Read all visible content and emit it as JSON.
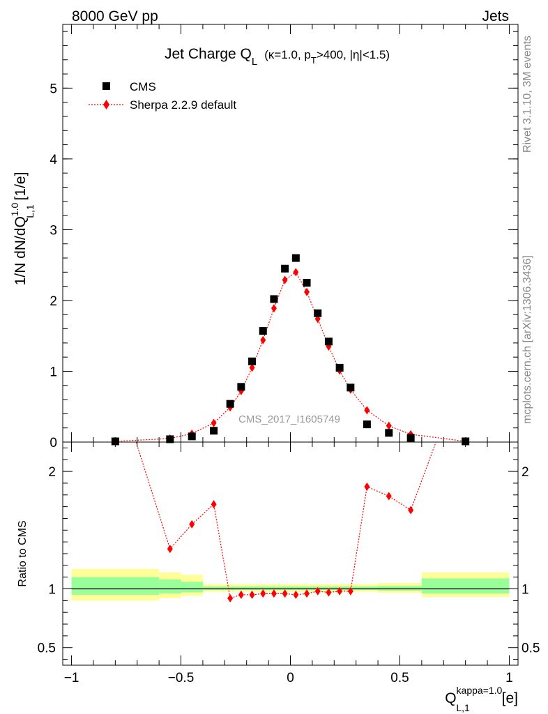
{
  "header": {
    "left": "8000 GeV pp",
    "right": "Jets"
  },
  "side_labels": {
    "rivet": "Rivet 3.1.10,  3M events",
    "mcplots": "mcplots.cern.ch [arXiv:1306.3436]"
  },
  "watermark": "CMS_2017_I1605749",
  "chart_data": {
    "type": "scatter",
    "title": {
      "main": "Jet Charge Q",
      "main_sub": "L",
      "cuts_a": "(κ=1.0, p",
      "cuts_sub": "T",
      "cuts_b": ">400, |η|<1.5)"
    },
    "ylabel": {
      "a": "1/N dN/dQ",
      "sup": "1.0",
      "sub": "L,1",
      "b": " [1/e]"
    },
    "xlabel": {
      "a": "Q",
      "sup": "kappa=1.0",
      "sub": "L,1",
      "b": " [e]"
    },
    "xlim": [
      -1.04,
      1.04
    ],
    "ylim": [
      0,
      5.9
    ],
    "x_ticks": [
      "−1",
      "−0.5",
      "0",
      "0.5",
      "1"
    ],
    "x_tick_values": [
      -1,
      -0.5,
      0,
      0.5,
      1
    ],
    "y_ticks": [
      "0",
      "1",
      "2",
      "3",
      "4",
      "5"
    ],
    "y_tick_values": [
      0,
      1,
      2,
      3,
      4,
      5
    ],
    "legend": [
      {
        "name": "CMS",
        "marker": "square",
        "color": "#000000"
      },
      {
        "name": "Sherpa 2.2.9 default",
        "marker": "diamond",
        "color": "#ff0000"
      }
    ],
    "legend_position": "top-left",
    "series": [
      {
        "name": "CMS",
        "x": [
          -0.8,
          -0.55,
          -0.45,
          -0.35,
          -0.275,
          -0.225,
          -0.175,
          -0.125,
          -0.075,
          -0.025,
          0.025,
          0.075,
          0.125,
          0.175,
          0.225,
          0.275,
          0.35,
          0.45,
          0.55,
          0.8
        ],
        "y": [
          0.01,
          0.04,
          0.08,
          0.16,
          0.54,
          0.78,
          1.14,
          1.57,
          2.02,
          2.45,
          2.6,
          2.25,
          1.82,
          1.42,
          1.05,
          0.77,
          0.25,
          0.13,
          0.06,
          0.01
        ]
      },
      {
        "name": "Sherpa 2.2.9 default",
        "x": [
          -0.8,
          -0.55,
          -0.45,
          -0.35,
          -0.275,
          -0.225,
          -0.175,
          -0.125,
          -0.075,
          -0.025,
          0.025,
          0.075,
          0.125,
          0.175,
          0.225,
          0.275,
          0.35,
          0.45,
          0.55,
          0.8
        ],
        "y": [
          0.01,
          0.05,
          0.12,
          0.27,
          0.49,
          0.72,
          1.05,
          1.44,
          1.89,
          2.29,
          2.4,
          2.12,
          1.74,
          1.35,
          1.01,
          0.74,
          0.45,
          0.23,
          0.11,
          0.01
        ]
      }
    ],
    "ratio": {
      "ylabel": "Ratio to CMS",
      "ylim": [
        0.35,
        2.25
      ],
      "y_ticks": [
        "0.5",
        "1",
        "2"
      ],
      "y_tick_values": [
        0.5,
        1,
        2
      ],
      "reference": 1,
      "x": [
        -0.55,
        -0.45,
        -0.35,
        -0.275,
        -0.225,
        -0.175,
        -0.125,
        -0.075,
        -0.025,
        0.025,
        0.075,
        0.125,
        0.175,
        0.225,
        0.275,
        0.35,
        0.45,
        0.55
      ],
      "y": [
        1.34,
        1.55,
        1.72,
        0.92,
        0.95,
        0.95,
        0.96,
        0.96,
        0.96,
        0.95,
        0.96,
        0.98,
        0.97,
        0.98,
        0.98,
        1.87,
        1.79,
        1.67
      ],
      "bands": [
        {
          "x0": -1.0,
          "x1": -0.6,
          "yellow": [
            0.9,
            1.17
          ],
          "green": [
            0.95,
            1.1
          ]
        },
        {
          "x0": -0.6,
          "x1": -0.5,
          "yellow": [
            0.92,
            1.14
          ],
          "green": [
            0.96,
            1.08
          ]
        },
        {
          "x0": -0.5,
          "x1": -0.4,
          "yellow": [
            0.94,
            1.12
          ],
          "green": [
            0.97,
            1.06
          ]
        },
        {
          "x0": -0.4,
          "x1": 0.4,
          "yellow": [
            0.975,
            1.04
          ],
          "green": [
            0.99,
            1.02
          ]
        },
        {
          "x0": 0.4,
          "x1": 0.6,
          "yellow": [
            0.965,
            1.05
          ],
          "green": [
            0.985,
            1.025
          ]
        },
        {
          "x0": 0.6,
          "x1": 1.0,
          "yellow": [
            0.93,
            1.14
          ],
          "green": [
            0.96,
            1.09
          ]
        }
      ]
    }
  }
}
